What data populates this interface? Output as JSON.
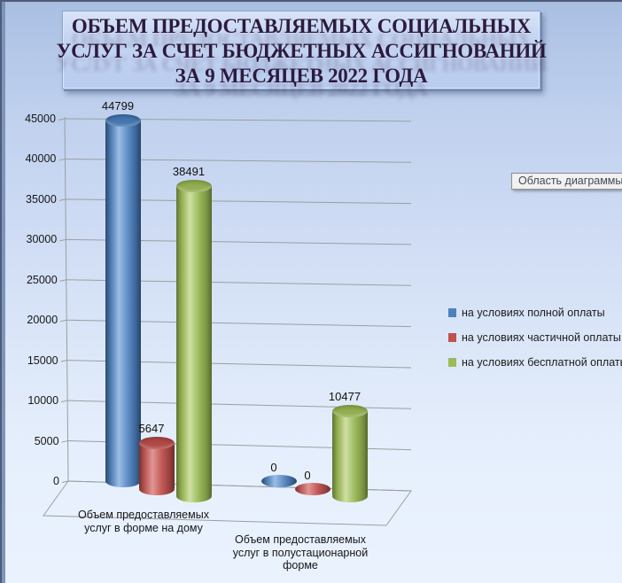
{
  "title": {
    "lines": [
      "ОБЪЕМ ПРЕДОСТАВЛЯЕМЫХ СОЦИАЛЬНЫХ",
      "УСЛУГ ЗА СЧЕТ БЮДЖЕТНЫХ АССИГНОВАНИЙ",
      "ЗА 9 МЕСЯЦЕВ 2022 ГОДА"
    ]
  },
  "tooltip": {
    "text": "Область диаграммы"
  },
  "chart_data": {
    "type": "bar",
    "style": "3d-cylinder",
    "title": "ОБЪЕМ ПРЕДОСТАВЛЯЕМЫХ СОЦИАЛЬНЫХ УСЛУГ ЗА СЧЕТ БЮДЖЕТНЫХ АССИГНОВАНИЙ ЗА 9 МЕСЯЦЕВ 2022 ГОДА",
    "categories": [
      "Объем предоставляемых услуг в форме на дому",
      "Объем предоставляемых услуг в полустационарной форме"
    ],
    "series": [
      {
        "name": "на условиях полной оплаты",
        "color": "#4f81bd",
        "values": [
          44799,
          0
        ]
      },
      {
        "name": "на условиях частичной оплаты",
        "color": "#c0504d",
        "values": [
          5647,
          0
        ]
      },
      {
        "name": "на условиях бесплатной оплаты",
        "color": "#9bbb59",
        "values": [
          38491,
          10477
        ]
      }
    ],
    "data_labels": [
      [
        "44799",
        "0"
      ],
      [
        "5647",
        "0"
      ],
      [
        "38491",
        "10477"
      ]
    ],
    "ylim": [
      0,
      45000
    ],
    "ytick_step": 5000,
    "y_ticks": [
      0,
      5000,
      10000,
      15000,
      20000,
      25000,
      30000,
      35000,
      40000,
      45000
    ],
    "grid": true,
    "legend_position": "right",
    "grid_color": "#9aa0a0",
    "background_top": "#b3c6e7",
    "background_bottom": "#eaf2fe"
  }
}
